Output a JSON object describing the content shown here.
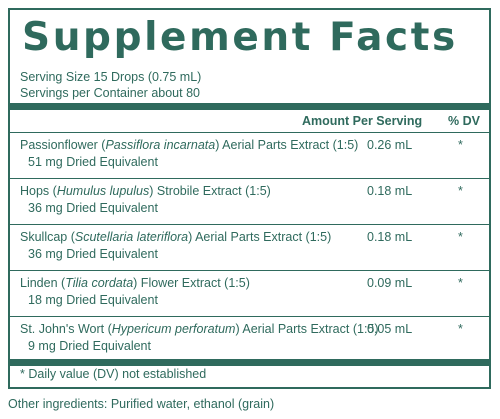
{
  "title": "Supplement Facts",
  "serving_size": "Serving Size 15 Drops (0.75 mL)",
  "servings_per_container": "Servings per Container about 80",
  "header": {
    "amount_per_serving": "Amount Per Serving",
    "dv": "% DV"
  },
  "ingredients": [
    {
      "name_prefix": "Passionflower (",
      "latin": "Passiflora incarnata",
      "name_suffix": ") Aerial Parts Extract (1:5)",
      "equivalent": "51 mg Dried Equivalent",
      "amount": "0.26 mL",
      "dv": "*"
    },
    {
      "name_prefix": "Hops (",
      "latin": "Humulus lupulus",
      "name_suffix": ") Strobile Extract (1:5)",
      "equivalent": "36 mg Dried Equivalent",
      "amount": "0.18 mL",
      "dv": "*"
    },
    {
      "name_prefix": "Skullcap (",
      "latin": "Scutellaria lateriflora",
      "name_suffix": ") Aerial Parts Extract (1:5)",
      "equivalent": "36 mg Dried Equivalent",
      "amount": "0.18 mL",
      "dv": "*"
    },
    {
      "name_prefix": "Linden (",
      "latin": "Tilia cordata",
      "name_suffix": ") Flower Extract (1:5)",
      "equivalent": "18 mg Dried Equivalent",
      "amount": "0.09 mL",
      "dv": "*"
    },
    {
      "name_prefix": "St. John's Wort (",
      "latin": "Hypericum perforatum",
      "name_suffix": ") Aerial Parts Extract (1:5)",
      "equivalent": "9 mg Dried Equivalent",
      "amount": "0.05 mL",
      "dv": "*"
    }
  ],
  "footnote": "* Daily value (DV) not established",
  "other_ingredients": "Other ingredients: Purified water, ethanol (grain)",
  "colors": {
    "accent": "#2f6a5d"
  }
}
